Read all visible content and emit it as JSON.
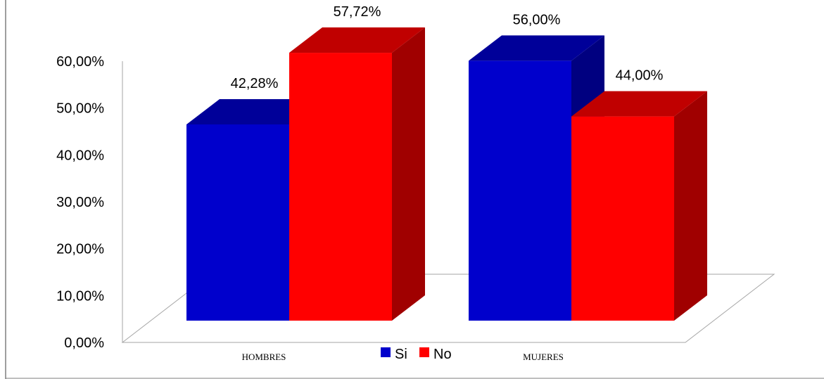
{
  "chart_data": {
    "type": "bar",
    "categories": [
      "HOMBRES",
      "MUJERES"
    ],
    "series": [
      {
        "name": "Si",
        "values": [
          42.28,
          56.0
        ],
        "labels": [
          "42,28%",
          "56,00%"
        ],
        "color": "#0000CC",
        "top_color": "#000099",
        "side_color": "#000080"
      },
      {
        "name": "No",
        "values": [
          57.72,
          44.0
        ],
        "labels": [
          "57,72%",
          "44,00%"
        ],
        "color": "#FF0000",
        "top_color": "#C00000",
        "side_color": "#A00000"
      }
    ],
    "y_ticks": [
      "0,00%",
      "10,00%",
      "20,00%",
      "30,00%",
      "40,00%",
      "50,00%",
      "60,00%"
    ],
    "ylim": [
      0,
      60
    ],
    "title": "",
    "xlabel": "",
    "ylabel": "",
    "grid": false,
    "legend_position": "bottom",
    "style": "3d-column"
  }
}
